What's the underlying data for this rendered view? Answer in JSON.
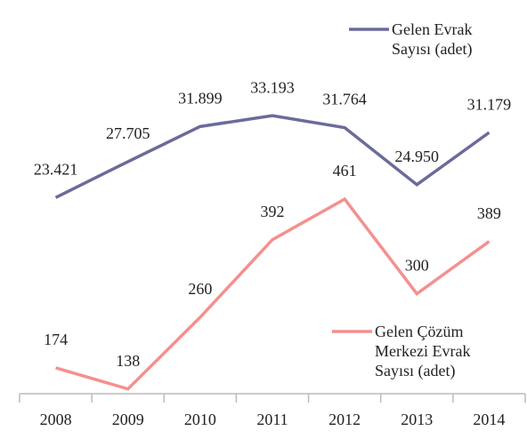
{
  "chart_data": {
    "type": "line",
    "categories": [
      "2008",
      "2009",
      "2010",
      "2011",
      "2012",
      "2013",
      "2014"
    ],
    "series": [
      {
        "name": "Gelen Evrak Sayısı (adet)",
        "color": "#6b6b9a",
        "values": [
          23421,
          27705,
          31899,
          33193,
          31764,
          24950,
          31179
        ],
        "value_labels": [
          "23.421",
          "27.705",
          "31.899",
          "33.193",
          "31.764",
          "24.950",
          "31.179"
        ]
      },
      {
        "name": "Gelen Çözüm Merkezi Evrak Sayısı (adet)",
        "color": "#f4908e",
        "axis": "y2",
        "values": [
          174,
          138,
          260,
          392,
          461,
          300,
          389
        ]
      }
    ],
    "ylim": [
      0,
      40000
    ],
    "y2lim": [
      130,
      700
    ]
  }
}
